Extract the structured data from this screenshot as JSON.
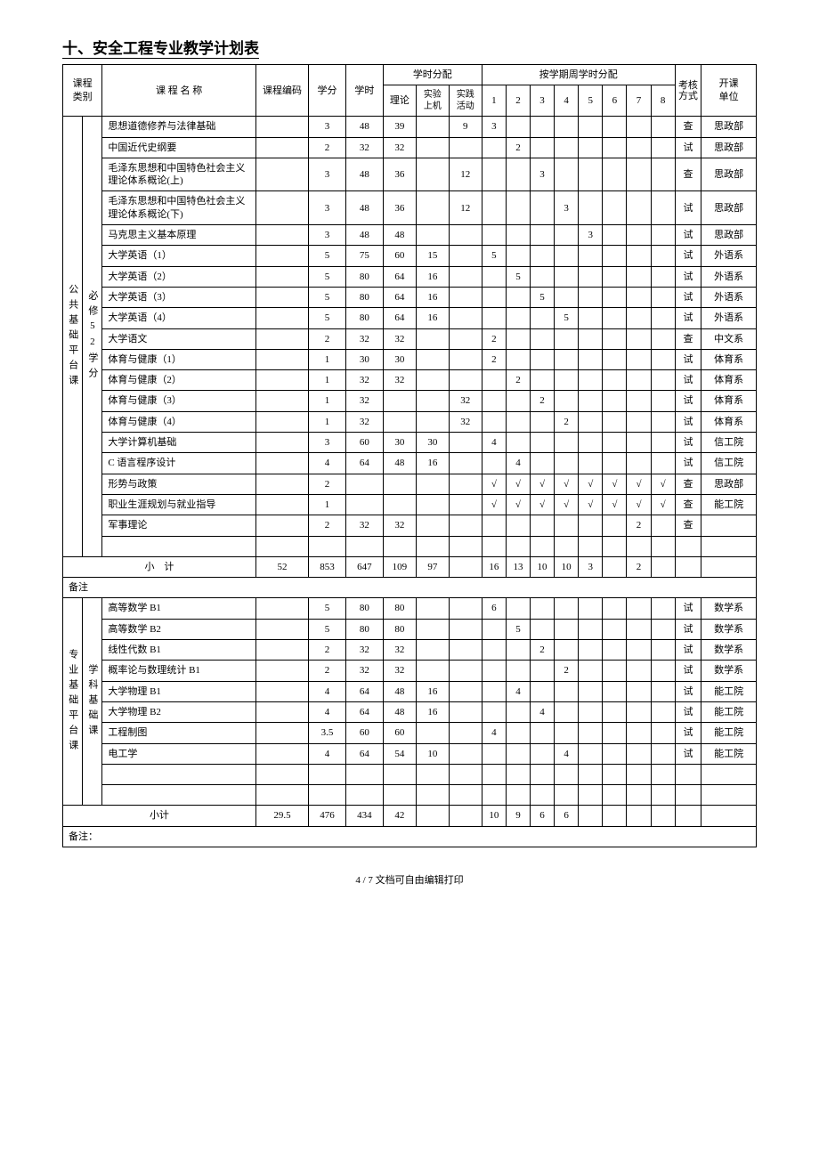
{
  "title": "十、安全工程专业教学计划表",
  "headers": {
    "category": "课程\n类别",
    "name": "课 程 名 称",
    "code": "课程编码",
    "credit": "学分",
    "hours": "学时",
    "hours_dist": "学时分配",
    "theory": "理论",
    "lab": "实验\n上机",
    "practice": "实践\n活动",
    "by_sem": "按学期周学时分配",
    "s1": "1",
    "s2": "2",
    "s3": "3",
    "s4": "4",
    "s5": "5",
    "s6": "6",
    "s7": "7",
    "s8": "8",
    "assess": "考核方式",
    "dept": "开课\n单位"
  },
  "group1_cat_outer": "公共基础平台课",
  "group1_cat_inner": "必修52学分",
  "group2_cat_outer": "专业基础平台课",
  "group2_cat_inner": "学科基础课",
  "rows1": [
    {
      "name": "思想道德修养与法律基础",
      "credit": "3",
      "hours": "48",
      "theory": "39",
      "lab": "",
      "practice": "9",
      "s1": "3",
      "s2": "",
      "s3": "",
      "s4": "",
      "s5": "",
      "s6": "",
      "s7": "",
      "s8": "",
      "assess": "查",
      "dept": "思政部"
    },
    {
      "name": "中国近代史纲要",
      "credit": "2",
      "hours": "32",
      "theory": "32",
      "lab": "",
      "practice": "",
      "s1": "",
      "s2": "2",
      "s3": "",
      "s4": "",
      "s5": "",
      "s6": "",
      "s7": "",
      "s8": "",
      "assess": "试",
      "dept": "思政部"
    },
    {
      "name": "毛泽东思想和中国特色社会主义理论体系概论(上)",
      "credit": "3",
      "hours": "48",
      "theory": "36",
      "lab": "",
      "practice": "12",
      "s1": "",
      "s2": "",
      "s3": "3",
      "s4": "",
      "s5": "",
      "s6": "",
      "s7": "",
      "s8": "",
      "assess": "查",
      "dept": "思政部"
    },
    {
      "name": "毛泽东思想和中国特色社会主义理论体系概论(下)",
      "credit": "3",
      "hours": "48",
      "theory": "36",
      "lab": "",
      "practice": "12",
      "s1": "",
      "s2": "",
      "s3": "",
      "s4": "3",
      "s5": "",
      "s6": "",
      "s7": "",
      "s8": "",
      "assess": "试",
      "dept": "思政部"
    },
    {
      "name": "马克思主义基本原理",
      "credit": "3",
      "hours": "48",
      "theory": "48",
      "lab": "",
      "practice": "",
      "s1": "",
      "s2": "",
      "s3": "",
      "s4": "",
      "s5": "3",
      "s6": "",
      "s7": "",
      "s8": "",
      "assess": "试",
      "dept": "思政部"
    },
    {
      "name": "大学英语（1）",
      "credit": "5",
      "hours": "75",
      "theory": "60",
      "lab": "15",
      "practice": "",
      "s1": "5",
      "s2": "",
      "s3": "",
      "s4": "",
      "s5": "",
      "s6": "",
      "s7": "",
      "s8": "",
      "assess": "试",
      "dept": "外语系"
    },
    {
      "name": "大学英语（2）",
      "credit": "5",
      "hours": "80",
      "theory": "64",
      "lab": "16",
      "practice": "",
      "s1": "",
      "s2": "5",
      "s3": "",
      "s4": "",
      "s5": "",
      "s6": "",
      "s7": "",
      "s8": "",
      "assess": "试",
      "dept": "外语系"
    },
    {
      "name": "大学英语（3）",
      "credit": "5",
      "hours": "80",
      "theory": "64",
      "lab": "16",
      "practice": "",
      "s1": "",
      "s2": "",
      "s3": "5",
      "s4": "",
      "s5": "",
      "s6": "",
      "s7": "",
      "s8": "",
      "assess": "试",
      "dept": "外语系"
    },
    {
      "name": "大学英语（4）",
      "credit": "5",
      "hours": "80",
      "theory": "64",
      "lab": "16",
      "practice": "",
      "s1": "",
      "s2": "",
      "s3": "",
      "s4": "5",
      "s5": "",
      "s6": "",
      "s7": "",
      "s8": "",
      "assess": "试",
      "dept": "外语系"
    },
    {
      "name": "大学语文",
      "credit": "2",
      "hours": "32",
      "theory": "32",
      "lab": "",
      "practice": "",
      "s1": "2",
      "s2": "",
      "s3": "",
      "s4": "",
      "s5": "",
      "s6": "",
      "s7": "",
      "s8": "",
      "assess": "查",
      "dept": "中文系"
    },
    {
      "name": "体育与健康（1）",
      "credit": "1",
      "hours": "30",
      "theory": "30",
      "lab": "",
      "practice": "",
      "s1": "2",
      "s2": "",
      "s3": "",
      "s4": "",
      "s5": "",
      "s6": "",
      "s7": "",
      "s8": "",
      "assess": "试",
      "dept": "体育系"
    },
    {
      "name": "体育与健康（2）",
      "credit": "1",
      "hours": "32",
      "theory": "32",
      "lab": "",
      "practice": "",
      "s1": "",
      "s2": "2",
      "s3": "",
      "s4": "",
      "s5": "",
      "s6": "",
      "s7": "",
      "s8": "",
      "assess": "试",
      "dept": "体育系"
    },
    {
      "name": "体育与健康（3）",
      "credit": "1",
      "hours": "32",
      "theory": "",
      "lab": "",
      "practice": "32",
      "s1": "",
      "s2": "",
      "s3": "2",
      "s4": "",
      "s5": "",
      "s6": "",
      "s7": "",
      "s8": "",
      "assess": "试",
      "dept": "体育系"
    },
    {
      "name": "体育与健康（4）",
      "credit": "1",
      "hours": "32",
      "theory": "",
      "lab": "",
      "practice": "32",
      "s1": "",
      "s2": "",
      "s3": "",
      "s4": "2",
      "s5": "",
      "s6": "",
      "s7": "",
      "s8": "",
      "assess": "试",
      "dept": "体育系"
    },
    {
      "name": "大学计算机基础",
      "credit": "3",
      "hours": "60",
      "theory": "30",
      "lab": "30",
      "practice": "",
      "s1": "4",
      "s2": "",
      "s3": "",
      "s4": "",
      "s5": "",
      "s6": "",
      "s7": "",
      "s8": "",
      "assess": "试",
      "dept": "信工院"
    },
    {
      "name": "C 语言程序设计",
      "credit": "4",
      "hours": "64",
      "theory": "48",
      "lab": "16",
      "practice": "",
      "s1": "",
      "s2": "4",
      "s3": "",
      "s4": "",
      "s5": "",
      "s6": "",
      "s7": "",
      "s8": "",
      "assess": "试",
      "dept": "信工院"
    },
    {
      "name": "形势与政策",
      "credit": "2",
      "hours": "",
      "theory": "",
      "lab": "",
      "practice": "",
      "s1": "√",
      "s2": "√",
      "s3": "√",
      "s4": "√",
      "s5": "√",
      "s6": "√",
      "s7": "√",
      "s8": "√",
      "assess": "查",
      "dept": "思政部"
    },
    {
      "name": "职业生涯规划与就业指导",
      "credit": "1",
      "hours": "",
      "theory": "",
      "lab": "",
      "practice": "",
      "s1": "√",
      "s2": "√",
      "s3": "√",
      "s4": "√",
      "s5": "√",
      "s6": "√",
      "s7": "√",
      "s8": "√",
      "assess": "查",
      "dept": "能工院"
    },
    {
      "name": "军事理论",
      "credit": "2",
      "hours": "32",
      "theory": "32",
      "lab": "",
      "practice": "",
      "s1": "",
      "s2": "",
      "s3": "",
      "s4": "",
      "s5": "",
      "s6": "",
      "s7": "2",
      "s8": "",
      "assess": "查",
      "dept": ""
    }
  ],
  "subtotal1": {
    "label": "小　计",
    "credit": "52",
    "hours": "853",
    "theory": "647",
    "lab": "109",
    "practice": "97",
    "s1": "16",
    "s2": "13",
    "s3": "10",
    "s4": "10",
    "s5": "3",
    "s6": "",
    "s7": "2",
    "s8": "",
    "assess": "",
    "dept": ""
  },
  "note1": "备注",
  "rows2": [
    {
      "name": "高等数学 B1",
      "credit": "5",
      "hours": "80",
      "theory": "80",
      "lab": "",
      "practice": "",
      "s1": "6",
      "s2": "",
      "s3": "",
      "s4": "",
      "s5": "",
      "s6": "",
      "s7": "",
      "s8": "",
      "assess": "试",
      "dept": "数学系"
    },
    {
      "name": "高等数学 B2",
      "credit": "5",
      "hours": "80",
      "theory": "80",
      "lab": "",
      "practice": "",
      "s1": "",
      "s2": "5",
      "s3": "",
      "s4": "",
      "s5": "",
      "s6": "",
      "s7": "",
      "s8": "",
      "assess": "试",
      "dept": "数学系"
    },
    {
      "name": "线性代数 B1",
      "credit": "2",
      "hours": "32",
      "theory": "32",
      "lab": "",
      "practice": "",
      "s1": "",
      "s2": "",
      "s3": "2",
      "s4": "",
      "s5": "",
      "s6": "",
      "s7": "",
      "s8": "",
      "assess": "试",
      "dept": "数学系"
    },
    {
      "name": "概率论与数理统计 B1",
      "credit": "2",
      "hours": "32",
      "theory": "32",
      "lab": "",
      "practice": "",
      "s1": "",
      "s2": "",
      "s3": "",
      "s4": "2",
      "s5": "",
      "s6": "",
      "s7": "",
      "s8": "",
      "assess": "试",
      "dept": "数学系"
    },
    {
      "name": "大学物理 B1",
      "credit": "4",
      "hours": "64",
      "theory": "48",
      "lab": "16",
      "practice": "",
      "s1": "",
      "s2": "4",
      "s3": "",
      "s4": "",
      "s5": "",
      "s6": "",
      "s7": "",
      "s8": "",
      "assess": "试",
      "dept": "能工院"
    },
    {
      "name": "大学物理 B2",
      "credit": "4",
      "hours": "64",
      "theory": "48",
      "lab": "16",
      "practice": "",
      "s1": "",
      "s2": "",
      "s3": "4",
      "s4": "",
      "s5": "",
      "s6": "",
      "s7": "",
      "s8": "",
      "assess": "试",
      "dept": "能工院"
    },
    {
      "name": "工程制图",
      "credit": "3.5",
      "hours": "60",
      "theory": "60",
      "lab": "",
      "practice": "",
      "s1": "4",
      "s2": "",
      "s3": "",
      "s4": "",
      "s5": "",
      "s6": "",
      "s7": "",
      "s8": "",
      "assess": "试",
      "dept": "能工院"
    },
    {
      "name": "电工学",
      "credit": "4",
      "hours": "64",
      "theory": "54",
      "lab": "10",
      "practice": "",
      "s1": "",
      "s2": "",
      "s3": "",
      "s4": "4",
      "s5": "",
      "s6": "",
      "s7": "",
      "s8": "",
      "assess": "试",
      "dept": "能工院"
    }
  ],
  "subtotal2": {
    "label": "小计",
    "credit": "29.5",
    "hours": "476",
    "theory": "434",
    "lab": "42",
    "practice": "",
    "s1": "10",
    "s2": "9",
    "s3": "6",
    "s4": "6",
    "s5": "",
    "s6": "",
    "s7": "",
    "s8": "",
    "assess": "",
    "dept": ""
  },
  "note2": "备注：",
  "footer": "4 / 7 文档可自由编辑打印"
}
